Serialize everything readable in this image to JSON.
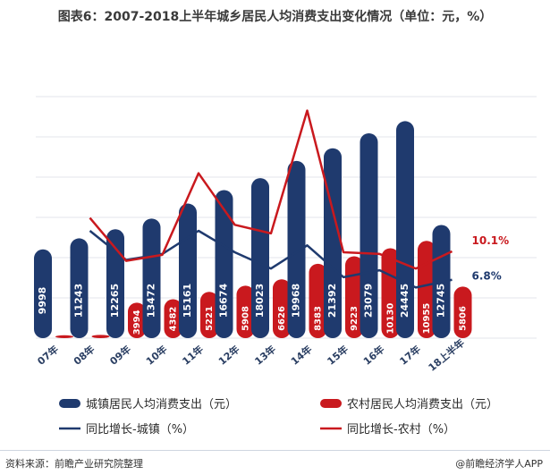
{
  "title": "图表6：2007-2018上半年城乡居民人均消费支出变化情况（单位：元，%）",
  "source": "资料来源：前瞻产业研究院整理",
  "credit": "@前瞻经济学人APP",
  "colors": {
    "urban": "#1f3a6e",
    "rural": "#c9191e",
    "grid": "#e3e6eb",
    "axis_text": "#2b3f63"
  },
  "chart_data": {
    "type": "bar",
    "categories": [
      "07年",
      "08年",
      "09年",
      "10年",
      "11年",
      "12年",
      "13年",
      "14年",
      "15年",
      "16年",
      "17年",
      "18上半年"
    ],
    "series": [
      {
        "name": "城镇居民人均消费支出（元）",
        "type": "bar",
        "values": [
          9998,
          11243,
          12265,
          13472,
          15161,
          16674,
          18023,
          19968,
          21392,
          23079,
          24445,
          12745
        ]
      },
      {
        "name": "农村居民人均消费支出（元）",
        "type": "bar",
        "values": [
          322,
          366,
          3994,
          4382,
          5221,
          5908,
          6626,
          8383,
          9223,
          10130,
          10955,
          5806
        ]
      },
      {
        "name": "同比增长-城镇（%）",
        "type": "line",
        "values": [
          null,
          12.5,
          9.1,
          9.8,
          12.5,
          10.0,
          8.1,
          10.8,
          7.1,
          7.9,
          5.9,
          6.8
        ]
      },
      {
        "name": "同比增长-农村（%）",
        "type": "line",
        "values": [
          null,
          14.0,
          9.0,
          9.7,
          19.2,
          13.2,
          12.2,
          26.5,
          10.0,
          9.8,
          8.1,
          10.1
        ]
      }
    ],
    "annotations": [
      {
        "series": "同比增长-农村（%）",
        "category": "18上半年",
        "text": "10.1%"
      },
      {
        "series": "同比增长-城镇（%）",
        "category": "18上半年",
        "text": "6.8%"
      }
    ],
    "ylim_bar": [
      0,
      26000
    ],
    "ylim_line": [
      0,
      30
    ],
    "grid": true,
    "legend_position": "bottom"
  }
}
